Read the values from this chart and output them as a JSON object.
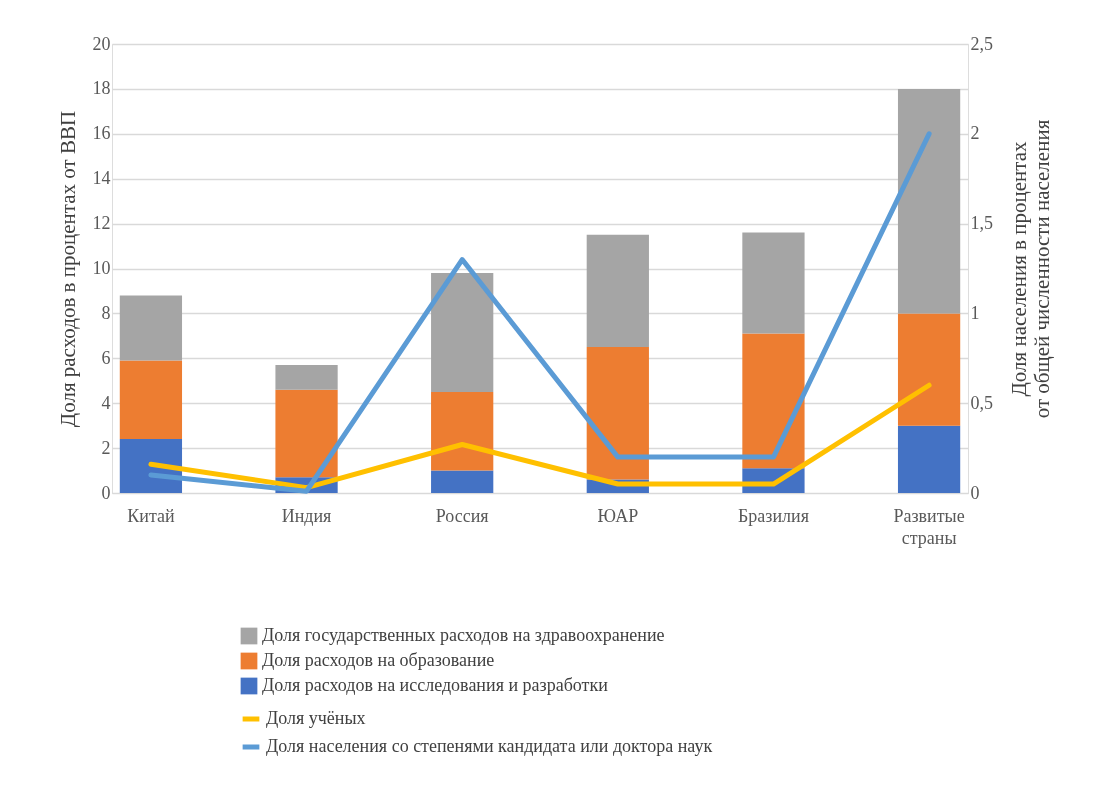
{
  "chart_data": {
    "type": "bar",
    "stacked": true,
    "ylabel": "Доля расходов в процентах от ВВП",
    "y2label": "Доля населения в процентах\nот общей численности населения",
    "categories": [
      "Китай",
      "Индия",
      "Россия",
      "ЮАР",
      "Бразилия",
      "Развитые страны"
    ],
    "series": [
      {
        "name": "Доля расходов на исследования и разработки",
        "color": "#4472c4",
        "values": [
          2.4,
          0.7,
          1.0,
          0.6,
          1.1,
          3.0
        ]
      },
      {
        "name": "Доля расходов на образование",
        "color": "#ed7d31",
        "values": [
          3.5,
          3.9,
          3.5,
          5.9,
          6.0,
          5.0
        ]
      },
      {
        "name": "Доля государственных расходов на здравоохранение",
        "color": "#a5a5a5",
        "values": [
          2.9,
          1.1,
          5.3,
          5.0,
          4.5,
          10.0
        ]
      },
      {
        "name": "Доля учёных",
        "color": "#ffc000",
        "type": "line",
        "axis": "y2",
        "values": [
          0.16,
          0.03,
          0.27,
          0.05,
          0.05,
          0.6
        ]
      },
      {
        "name": "Доля населения со степенями кандидата или доктора наук",
        "color": "#5b9bd5",
        "type": "line",
        "axis": "y2",
        "values": [
          0.1,
          0.01,
          1.3,
          0.2,
          0.2,
          2.0
        ]
      }
    ],
    "ylim": [
      0,
      20
    ],
    "yticks": [
      0,
      2,
      4,
      6,
      8,
      10,
      12,
      14,
      16,
      18,
      20
    ],
    "y2lim": [
      0,
      2.5
    ],
    "y2ticks": [
      0,
      {
        "value": 0.5,
        "label": "0,5"
      },
      1,
      {
        "value": 1.5,
        "label": "1,5"
      },
      2,
      {
        "value": 2.5,
        "label": "2,5"
      }
    ],
    "grid": "y",
    "legend": "bottom"
  }
}
